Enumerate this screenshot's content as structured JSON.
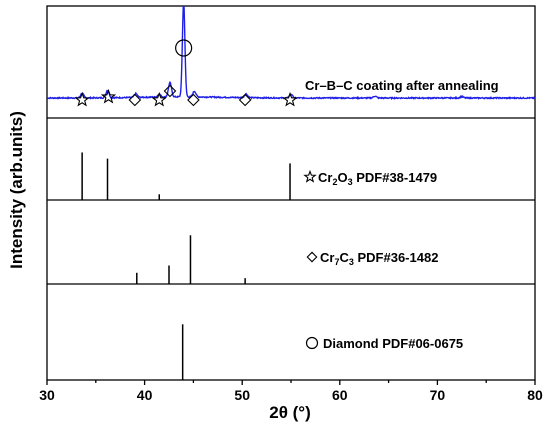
{
  "chart_data": {
    "type": "line",
    "xlabel": "2θ (°)",
    "ylabel": "Intensity (arb.units)",
    "xlim": [
      30,
      80
    ],
    "xticks": [
      "30",
      "40",
      "50",
      "60",
      "70",
      "80"
    ],
    "grid": false,
    "panels": [
      {
        "name": "Cr–B–C coating after annealing",
        "kind": "pattern",
        "color": "#1f1fe6",
        "peaks": [
          {
            "x": 33.6,
            "h": 0.05
          },
          {
            "x": 36.2,
            "h": 0.08
          },
          {
            "x": 39.1,
            "h": 0.04
          },
          {
            "x": 41.5,
            "h": 0.03
          },
          {
            "x": 42.6,
            "h": 0.15
          },
          {
            "x": 44.0,
            "h": 1.0
          },
          {
            "x": 45.1,
            "h": 0.06
          },
          {
            "x": 50.4,
            "h": 0.04
          },
          {
            "x": 55.0,
            "h": 0.04
          },
          {
            "x": 63.6,
            "h": 0.02
          },
          {
            "x": 72.5,
            "h": 0.015
          }
        ],
        "markers": [
          {
            "x": 33.6,
            "symbol": "star"
          },
          {
            "x": 36.3,
            "symbol": "star"
          },
          {
            "x": 39.0,
            "symbol": "diamond"
          },
          {
            "x": 41.5,
            "symbol": "star"
          },
          {
            "x": 42.6,
            "symbol": "diamond"
          },
          {
            "x": 44.0,
            "symbol": "circle"
          },
          {
            "x": 45.0,
            "symbol": "diamond"
          },
          {
            "x": 50.3,
            "symbol": "diamond"
          },
          {
            "x": 54.9,
            "symbol": "star"
          }
        ]
      },
      {
        "name": "Cr2O3 PDF#38-1479",
        "symbol": "star",
        "formula": [
          [
            "Cr",
            ""
          ],
          [
            "2",
            "sub"
          ],
          [
            "O",
            ""
          ],
          [
            "3",
            "sub"
          ],
          [
            " PDF#38-1479",
            ""
          ]
        ],
        "sticks": [
          {
            "x": 33.6,
            "h": 1.0
          },
          {
            "x": 36.2,
            "h": 0.87
          },
          {
            "x": 41.5,
            "h": 0.12
          },
          {
            "x": 54.9,
            "h": 0.77
          }
        ]
      },
      {
        "name": "Cr7C3 PDF#36-1482",
        "symbol": "diamond",
        "formula": [
          [
            "Cr",
            ""
          ],
          [
            "7",
            "sub"
          ],
          [
            "C",
            ""
          ],
          [
            "3",
            "sub"
          ],
          [
            " PDF#36-1482",
            ""
          ]
        ],
        "sticks": [
          {
            "x": 39.2,
            "h": 0.23
          },
          {
            "x": 42.5,
            "h": 0.38
          },
          {
            "x": 44.7,
            "h": 1.0
          },
          {
            "x": 50.3,
            "h": 0.12
          }
        ]
      },
      {
        "name": "Diamond PDF#06-0675",
        "symbol": "circle",
        "formula": [
          [
            "Diamond PDF#06-0675",
            ""
          ]
        ],
        "sticks": [
          {
            "x": 43.9,
            "h": 1.0
          }
        ]
      }
    ]
  }
}
